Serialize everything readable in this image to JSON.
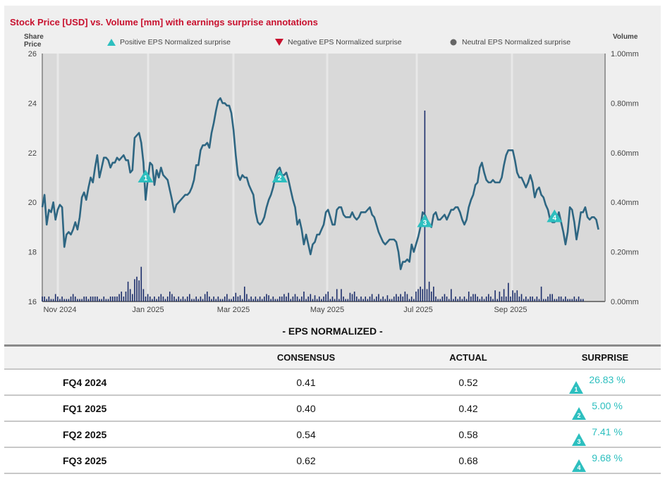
{
  "title": "Stock Price [USD] vs. Volume [mm] with earnings surprise annotations",
  "axes": {
    "left_caption": "Share Price",
    "right_caption": "Volume",
    "price_ticks": [
      "26",
      "24",
      "22",
      "20",
      "18",
      "16"
    ],
    "volume_ticks": [
      "1.00mm",
      "0.80mm",
      "0.60mm",
      "0.40mm",
      "0.20mm",
      "0.00mm"
    ],
    "x_ticks": [
      "Nov 2024",
      "Jan 2025",
      "Mar 2025",
      "May 2025",
      "Jul 2025",
      "Sep 2025"
    ]
  },
  "legend": {
    "positive": "Positive EPS Normalized surprise",
    "negative": "Negative EPS Normalized surprise",
    "neutral": "Neutral EPS Normalized surprise"
  },
  "colors": {
    "title": "#c8102e",
    "price_line": "#2e6682",
    "volume_bars": "#1c2e6b",
    "positive": "#2dbfbf",
    "negative": "#c8102e",
    "neutral": "#666666",
    "plot_bg": "#d9d9d9"
  },
  "chart_data": {
    "type": "line",
    "price_range": [
      16,
      26
    ],
    "volume_range": [
      0,
      1.0
    ],
    "x_range_index": [
      0,
      256
    ],
    "price_series": [
      19.8,
      20.3,
      19.1,
      19.7,
      19.6,
      20.0,
      19.3,
      19.7,
      19.9,
      19.8,
      18.2,
      18.7,
      18.8,
      18.7,
      18.9,
      19.2,
      18.9,
      19.4,
      20.2,
      20.4,
      20.1,
      20.6,
      21.0,
      20.8,
      21.4,
      21.9,
      21.0,
      21.4,
      21.8,
      21.8,
      21.7,
      21.4,
      21.6,
      21.6,
      21.8,
      21.7,
      21.8,
      21.9,
      21.7,
      21.7,
      21.2,
      21.3,
      22.6,
      22.7,
      22.8,
      22.4,
      21.6,
      20.1,
      20.9,
      21.6,
      21.5,
      20.7,
      21.3,
      21.0,
      21.4,
      21.1,
      21.0,
      20.9,
      20.5,
      20.1,
      19.6,
      19.9,
      20.0,
      20.1,
      20.2,
      20.3,
      20.3,
      20.4,
      20.6,
      20.9,
      21.5,
      21.5,
      22.1,
      22.3,
      22.3,
      22.4,
      22.2,
      22.8,
      23.2,
      23.7,
      24.1,
      24.2,
      24.0,
      24.0,
      23.9,
      23.9,
      23.6,
      22.9,
      21.9,
      21.1,
      20.9,
      21.1,
      21.0,
      21.0,
      20.7,
      20.5,
      20.3,
      19.6,
      19.2,
      19.1,
      19.2,
      19.4,
      19.8,
      20.1,
      20.3,
      20.6,
      21.0,
      21.3,
      21.4,
      21.1,
      21.1,
      21.2,
      20.9,
      20.5,
      20.1,
      19.8,
      19.1,
      19.3,
      18.9,
      18.3,
      18.7,
      18.3,
      17.9,
      18.3,
      18.4,
      18.7,
      18.7,
      18.9,
      19.1,
      19.6,
      19.7,
      19.4,
      19.1,
      19.1,
      19.7,
      19.8,
      19.8,
      19.5,
      19.4,
      19.4,
      19.4,
      19.6,
      19.4,
      19.3,
      19.4,
      19.6,
      19.6,
      19.6,
      19.7,
      19.8,
      19.5,
      19.4,
      19.1,
      18.8,
      18.6,
      18.4,
      18.3,
      18.4,
      18.5,
      18.5,
      18.5,
      18.4,
      18.0,
      17.3,
      17.6,
      17.6,
      17.7,
      17.6,
      18.3,
      18.0,
      18.3,
      18.6,
      19.0,
      19.6,
      19.5,
      19.3,
      19.1,
      19.0,
      19.5,
      19.6,
      19.3,
      19.3,
      19.4,
      19.5,
      19.3,
      19.5,
      19.7,
      19.7,
      19.8,
      19.8,
      19.6,
      19.3,
      19.1,
      19.3,
      19.8,
      20.1,
      20.3,
      20.7,
      20.8,
      21.4,
      21.6,
      21.2,
      20.9,
      20.8,
      20.8,
      20.9,
      20.8,
      20.8,
      20.8,
      21.0,
      21.5,
      21.9,
      22.1,
      22.1,
      22.1,
      21.7,
      21.2,
      21.0,
      21.0,
      20.8,
      20.6,
      20.8,
      21.1,
      20.8,
      20.2,
      20.5,
      20.6,
      20.3,
      20.2,
      19.9,
      19.7,
      19.3,
      19.2,
      19.2,
      19.3,
      19.6,
      19.2,
      18.8,
      18.3,
      18.8,
      19.8,
      19.7,
      19.2,
      18.5,
      19.0,
      19.6,
      19.6,
      19.8,
      19.4,
      19.3,
      19.4,
      19.4,
      19.3,
      18.9
    ],
    "volume_series": [
      0.02,
      0.02,
      0.01,
      0.02,
      0.01,
      0.01,
      0.03,
      0.02,
      0.01,
      0.02,
      0.01,
      0.01,
      0.01,
      0.02,
      0.03,
      0.02,
      0.01,
      0.01,
      0.01,
      0.02,
      0.02,
      0.01,
      0.02,
      0.02,
      0.02,
      0.02,
      0.01,
      0.01,
      0.02,
      0.01,
      0.01,
      0.02,
      0.02,
      0.02,
      0.02,
      0.03,
      0.04,
      0.02,
      0.02,
      0.01,
      0.02,
      0.03,
      0.02,
      0.03,
      0.02,
      0.01,
      0.01,
      0.02,
      0.03,
      0.02,
      0.01,
      0.02,
      0.01,
      0.02,
      0.03,
      0.02,
      0.01,
      0.02,
      0.02,
      0.01,
      0.02,
      0.01,
      0.02,
      0.01,
      0.02,
      0.01,
      0.02,
      0.03,
      0.01,
      0.01,
      0.02,
      0.01,
      0.02,
      0.01,
      0.02,
      0.02,
      0.02,
      0.01,
      0.02,
      0.01,
      0.02,
      0.01,
      0.01,
      0.02,
      0.03,
      0.01,
      0.01,
      0.02,
      0.03,
      0.02,
      0.03,
      0.01,
      0.01,
      0.02,
      0.01,
      0.02,
      0.01,
      0.02,
      0.01,
      0.02,
      0.01,
      0.02,
      0.03,
      0.02,
      0.01,
      0.02,
      0.01,
      0.01,
      0.02,
      0.02,
      0.01,
      0.02,
      0.01,
      0.01,
      0.02,
      0.03,
      0.02,
      0.01,
      0.02,
      0.01,
      0.01,
      0.02,
      0.02,
      0.01,
      0.02,
      0.01,
      0.02,
      0.01,
      0.02,
      0.03,
      0.02,
      0.01,
      0.02,
      0.01,
      0.02,
      0.01,
      0.02,
      0.02,
      0.01,
      0.01,
      0.02,
      0.03,
      0.01,
      0.02,
      0.01,
      0.02,
      0.01,
      0.02,
      0.01,
      0.02,
      0.03,
      0.01,
      0.02,
      0.03,
      0.01,
      0.02,
      0.01,
      0.02,
      0.01,
      0.01,
      0.02,
      0.03,
      0.02,
      0.01,
      0.02,
      0.01,
      0.02,
      0.01,
      0.02,
      0.01,
      0.02,
      0.01,
      0.02,
      0.02,
      0.01,
      0.02,
      0.01,
      0.02,
      0.03,
      0.02,
      0.01,
      0.01,
      0.02,
      0.03,
      0.02,
      0.01,
      0.02,
      0.01,
      0.02,
      0.01,
      0.02,
      0.01,
      0.02,
      0.01,
      0.01,
      0.02,
      0.03,
      0.01,
      0.02,
      0.01,
      0.02,
      0.01,
      0.02,
      0.03,
      0.02,
      0.01,
      0.02,
      0.01,
      0.01,
      0.02,
      0.03,
      0.02,
      0.01,
      0.02,
      0.01,
      0.02,
      0.01,
      0.02,
      0.03,
      0.01,
      0.02,
      0.01,
      0.02,
      0.02,
      0.01,
      0.02,
      0.01,
      0.02,
      0.01,
      0.01,
      0.02,
      0.03,
      0.02,
      0.01,
      0.01,
      0.02,
      0.02,
      0.01,
      0.02,
      0.01,
      0.01,
      0.01,
      0.02,
      0.01,
      0.02,
      0.01,
      0.01
    ],
    "volume_overrides": [
      [
        38,
        0.04
      ],
      [
        39,
        0.08
      ],
      [
        40,
        0.05
      ],
      [
        42,
        0.09
      ],
      [
        43,
        0.1
      ],
      [
        44,
        0.085
      ],
      [
        45,
        0.14
      ],
      [
        46,
        0.05
      ],
      [
        58,
        0.04
      ],
      [
        59,
        0.03
      ],
      [
        74,
        0.03
      ],
      [
        75,
        0.04
      ],
      [
        88,
        0.035
      ],
      [
        90,
        0.025
      ],
      [
        92,
        0.06
      ],
      [
        93,
        0.03
      ],
      [
        103,
        0.025
      ],
      [
        110,
        0.03
      ],
      [
        112,
        0.035
      ],
      [
        119,
        0.04
      ],
      [
        122,
        0.03
      ],
      [
        124,
        0.025
      ],
      [
        130,
        0.04
      ],
      [
        134,
        0.05
      ],
      [
        136,
        0.05
      ],
      [
        140,
        0.035
      ],
      [
        142,
        0.04
      ],
      [
        150,
        0.03
      ],
      [
        157,
        0.025
      ],
      [
        163,
        0.03
      ],
      [
        165,
        0.04
      ],
      [
        166,
        0.03
      ],
      [
        170,
        0.04
      ],
      [
        171,
        0.05
      ],
      [
        172,
        0.06
      ],
      [
        173,
        0.05
      ],
      [
        174,
        0.77
      ],
      [
        175,
        0.05
      ],
      [
        176,
        0.08
      ],
      [
        177,
        0.04
      ],
      [
        178,
        0.06
      ],
      [
        186,
        0.05
      ],
      [
        194,
        0.04
      ],
      [
        197,
        0.03
      ],
      [
        206,
        0.045
      ],
      [
        208,
        0.04
      ],
      [
        210,
        0.05
      ],
      [
        212,
        0.075
      ],
      [
        214,
        0.045
      ],
      [
        215,
        0.035
      ],
      [
        216,
        0.045
      ],
      [
        227,
        0.06
      ],
      [
        232,
        0.03
      ],
      [
        236,
        0.02
      ],
      [
        238,
        0.02
      ]
    ],
    "annotations": [
      {
        "label": "1",
        "type": "positive",
        "index": 47,
        "price": 21.0
      },
      {
        "label": "2",
        "type": "positive",
        "index": 108,
        "price": 21.0
      },
      {
        "label": "3",
        "type": "positive",
        "index": 174,
        "price": 19.2
      },
      {
        "label": "4",
        "type": "positive",
        "index": 233,
        "price": 19.4
      }
    ]
  },
  "eps": {
    "title": "- EPS NORMALIZED  -",
    "headers": [
      "",
      "CONSENSUS",
      "ACTUAL",
      "SURPRISE"
    ],
    "rows": [
      {
        "period": "FQ4 2024",
        "consensus": "0.41",
        "actual": "0.52",
        "surprise": "26.83 %",
        "marker": "1"
      },
      {
        "period": "FQ1 2025",
        "consensus": "0.40",
        "actual": "0.42",
        "surprise": "5.00 %",
        "marker": "2"
      },
      {
        "period": "FQ2 2025",
        "consensus": "0.54",
        "actual": "0.58",
        "surprise": "7.41 %",
        "marker": "3"
      },
      {
        "period": "FQ3 2025",
        "consensus": "0.62",
        "actual": "0.68",
        "surprise": "9.68 %",
        "marker": "4"
      }
    ]
  }
}
